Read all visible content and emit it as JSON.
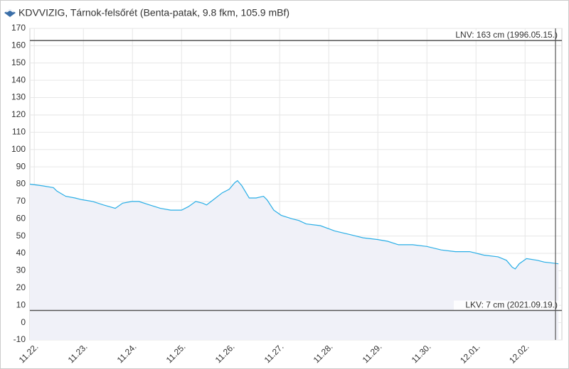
{
  "chart_data": {
    "type": "area",
    "title": "KDVVIZIG, Tárnok-felsőrét (Benta-patak, 9.8 fkm, 105.9 mBf)",
    "x": [
      -0.09,
      0.17,
      0.39,
      0.46,
      0.64,
      0.83,
      0.97,
      1.19,
      1.41,
      1.65,
      1.8,
      1.99,
      2.13,
      2.35,
      2.57,
      2.78,
      3.0,
      3.14,
      3.29,
      3.43,
      3.51,
      3.65,
      3.83,
      3.97,
      4.09,
      4.14,
      4.23,
      4.38,
      4.52,
      4.67,
      4.74,
      4.88,
      5.03,
      5.25,
      5.39,
      5.54,
      5.83,
      6.12,
      6.41,
      6.7,
      6.99,
      7.2,
      7.42,
      7.71,
      8.0,
      8.29,
      8.58,
      8.87,
      9.16,
      9.45,
      9.62,
      9.74,
      9.8,
      9.88,
      10.03,
      10.25,
      10.39,
      10.68
    ],
    "values": [
      80,
      79,
      78,
      76,
      73,
      72,
      71,
      70,
      68,
      66,
      69,
      70,
      70,
      68,
      66,
      65,
      65,
      67,
      70,
      69,
      68,
      71,
      75,
      77,
      81,
      82,
      79,
      72,
      72,
      73,
      71,
      65,
      62,
      60,
      59,
      57,
      56,
      53,
      51,
      49,
      48,
      47,
      45,
      45,
      44,
      42,
      41,
      41,
      39,
      38,
      36,
      32,
      31,
      34,
      37,
      36,
      35,
      34
    ],
    "color": "#29aee6",
    "fill": "#f0f1f8",
    "xlim": [
      -0.09,
      10.75
    ],
    "xticks": [
      {
        "value": 0,
        "label": "11.22."
      },
      {
        "value": 1,
        "label": "11.23."
      },
      {
        "value": 2,
        "label": "11.24."
      },
      {
        "value": 3,
        "label": "11.25."
      },
      {
        "value": 4,
        "label": "11.26."
      },
      {
        "value": 5,
        "label": "11.27."
      },
      {
        "value": 6,
        "label": "11.28."
      },
      {
        "value": 7,
        "label": "11.29."
      },
      {
        "value": 8,
        "label": "11.30."
      },
      {
        "value": 9,
        "label": "12.01."
      },
      {
        "value": 10,
        "label": "12.02."
      }
    ],
    "ylim": [
      -10,
      170
    ],
    "yticks": [
      -10,
      0,
      10,
      20,
      30,
      40,
      50,
      60,
      70,
      80,
      90,
      100,
      110,
      120,
      130,
      140,
      150,
      160,
      170
    ],
    "grid": true,
    "annotations": [
      {
        "label": "LNV: 163 cm (1996.05.15.)",
        "value": 163
      },
      {
        "label": "LKV: 7 cm (2021.09.19.)",
        "value": 7
      }
    ]
  }
}
